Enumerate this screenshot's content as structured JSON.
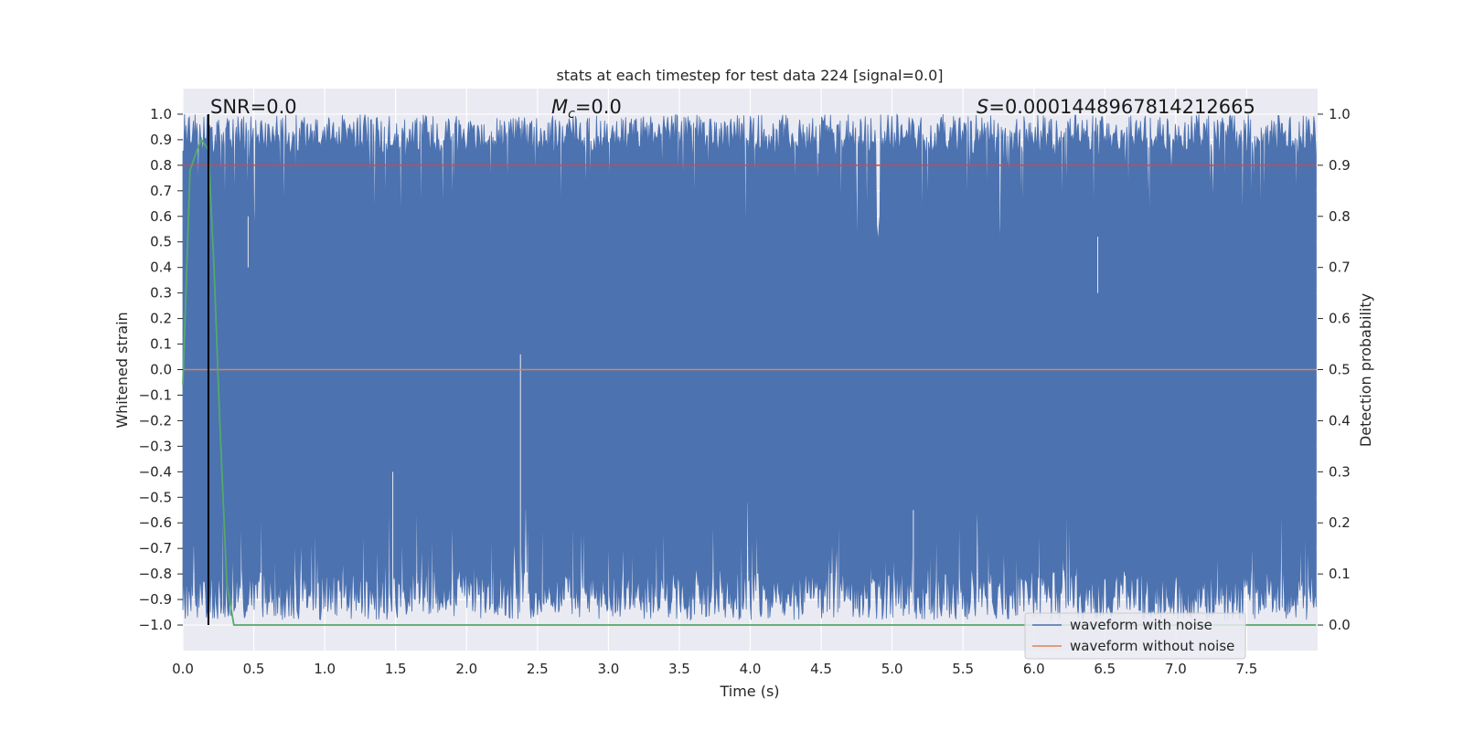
{
  "chart_data": {
    "type": "line",
    "title": "stats at each timestep for test data 224 [signal=0.0]",
    "xlabel": "Time (s)",
    "ylabel": "Whitened strain",
    "y2label": "Detection probability",
    "xlim": [
      0.0,
      8.0
    ],
    "ylim": [
      -1.1,
      1.1
    ],
    "y2lim": [
      -0.05,
      1.05
    ],
    "x_ticks": [
      "0.0",
      "0.5",
      "1.0",
      "1.5",
      "2.0",
      "2.5",
      "3.0",
      "3.5",
      "4.0",
      "4.5",
      "5.0",
      "5.5",
      "6.0",
      "6.5",
      "7.0",
      "7.5"
    ],
    "y_ticks": [
      "1.0",
      "0.9",
      "0.8",
      "0.7",
      "0.6",
      "0.5",
      "0.4",
      "0.3",
      "0.2",
      "0.1",
      "0.0",
      "−0.1",
      "−0.2",
      "−0.3",
      "−0.4",
      "−0.5",
      "−0.6",
      "−0.7",
      "−0.8",
      "−0.9",
      "−1.0"
    ],
    "y2_ticks": [
      "1.0",
      "0.9",
      "0.8",
      "0.7",
      "0.6",
      "0.5",
      "0.4",
      "0.3",
      "0.2",
      "0.1",
      "0.0"
    ],
    "grid": true,
    "legend_position": "lower-right",
    "annotations": {
      "snr": "SNR=0.0",
      "mc_symbol": "M",
      "mc_sub": "c",
      "mc_value": "=0.0",
      "s_symbol": "S",
      "s_value": "=0.0001448967814212665"
    },
    "series": [
      {
        "name": "waveform with noise",
        "color": "#4c72b0",
        "description_range": [
          -1.0,
          1.0
        ],
        "noise_envelope": {
          "top_mean": 0.92,
          "bottom_mean": -0.88,
          "x_start": 0.0,
          "x_end": 7.99
        }
      },
      {
        "name": "waveform without noise",
        "color": "#dd8452",
        "values_constant": 0.0
      },
      {
        "color": "#55a868",
        "x": [
          0.0,
          0.05,
          0.1,
          0.13,
          0.18,
          0.22,
          0.26,
          0.31,
          0.36,
          7.99
        ],
        "y": [
          0.47,
          0.89,
          0.93,
          0.95,
          0.93,
          0.7,
          0.4,
          0.08,
          0.0,
          0.0
        ]
      },
      {
        "color": "#c44e52",
        "y2_constant": 0.9
      }
    ],
    "vertical_line": {
      "x": 0.18,
      "color": "#000000"
    }
  }
}
